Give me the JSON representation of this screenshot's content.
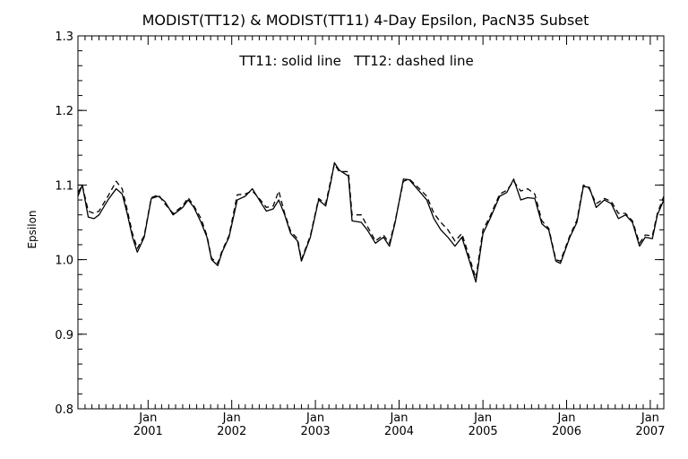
{
  "chart_data": {
    "type": "line",
    "title": "MODIST(TT12) & MODIST(TT11) 4-Day Epsilon, PacN35 Subset",
    "annotation": "TT11: solid line   TT12: dashed line",
    "xlabel": "",
    "ylabel": "Epsilon",
    "ylim": [
      0.8,
      1.3
    ],
    "xlim": [
      "2000-03-01",
      "2007-03-01"
    ],
    "yticks": [
      "0.8",
      "0.9",
      "1.0",
      "1.1",
      "1.2",
      "1.3"
    ],
    "xticks": [
      {
        "month": "Jan",
        "year": "2001",
        "date": "2001-01-01"
      },
      {
        "month": "Jan",
        "year": "2002",
        "date": "2002-01-01"
      },
      {
        "month": "Jan",
        "year": "2003",
        "date": "2003-01-01"
      },
      {
        "month": "Jan",
        "year": "2004",
        "date": "2004-01-01"
      },
      {
        "month": "Jan",
        "year": "2005",
        "date": "2005-01-01"
      },
      {
        "month": "Jan",
        "year": "2006",
        "date": "2006-01-01"
      },
      {
        "month": "Jan",
        "year": "2007",
        "date": "2007-01-01"
      }
    ],
    "grid": false,
    "series": [
      {
        "name": "TT11",
        "style": "solid",
        "color": "#000000",
        "points": [
          [
            "2000-03-01",
            1.085
          ],
          [
            "2000-03-20",
            1.1
          ],
          [
            "2000-04-15",
            1.057
          ],
          [
            "2000-05-10",
            1.055
          ],
          [
            "2000-06-01",
            1.06
          ],
          [
            "2000-07-10",
            1.08
          ],
          [
            "2000-08-15",
            1.095
          ],
          [
            "2000-09-10",
            1.088
          ],
          [
            "2000-10-01",
            1.063
          ],
          [
            "2000-10-25",
            1.03
          ],
          [
            "2000-11-15",
            1.01
          ],
          [
            "2000-12-15",
            1.03
          ],
          [
            "2001-01-15",
            1.082
          ],
          [
            "2001-02-15",
            1.085
          ],
          [
            "2001-03-15",
            1.078
          ],
          [
            "2001-04-20",
            1.06
          ],
          [
            "2001-06-01",
            1.07
          ],
          [
            "2001-06-25",
            1.08
          ],
          [
            "2001-07-20",
            1.07
          ],
          [
            "2001-08-20",
            1.05
          ],
          [
            "2001-09-15",
            1.03
          ],
          [
            "2001-10-05",
            1.0
          ],
          [
            "2001-11-01",
            0.992
          ],
          [
            "2001-11-20",
            1.01
          ],
          [
            "2001-12-20",
            1.03
          ],
          [
            "2002-01-25",
            1.08
          ],
          [
            "2002-03-01",
            1.085
          ],
          [
            "2002-04-01",
            1.095
          ],
          [
            "2002-05-01",
            1.08
          ],
          [
            "2002-06-01",
            1.065
          ],
          [
            "2002-07-01",
            1.068
          ],
          [
            "2002-07-25",
            1.08
          ],
          [
            "2002-08-20",
            1.06
          ],
          [
            "2002-09-15",
            1.035
          ],
          [
            "2002-10-15",
            1.025
          ],
          [
            "2002-11-01",
            0.998
          ],
          [
            "2002-12-10",
            1.03
          ],
          [
            "2003-01-15",
            1.08
          ],
          [
            "2003-02-15",
            1.072
          ],
          [
            "2003-03-10",
            1.105
          ],
          [
            "2003-03-25",
            1.13
          ],
          [
            "2003-04-15",
            1.12
          ],
          [
            "2003-05-25",
            1.112
          ],
          [
            "2003-06-10",
            1.052
          ],
          [
            "2003-07-20",
            1.05
          ],
          [
            "2003-08-15",
            1.04
          ],
          [
            "2003-09-20",
            1.022
          ],
          [
            "2003-10-25",
            1.03
          ],
          [
            "2003-11-20",
            1.018
          ],
          [
            "2003-12-15",
            1.05
          ],
          [
            "2004-01-20",
            1.108
          ],
          [
            "2004-02-15",
            1.107
          ],
          [
            "2004-03-20",
            1.095
          ],
          [
            "2004-05-01",
            1.08
          ],
          [
            "2004-06-01",
            1.055
          ],
          [
            "2004-07-01",
            1.04
          ],
          [
            "2004-08-01",
            1.03
          ],
          [
            "2004-09-01",
            1.018
          ],
          [
            "2004-10-01",
            1.03
          ],
          [
            "2004-11-01",
            1.0
          ],
          [
            "2004-12-01",
            0.97
          ],
          [
            "2005-01-01",
            1.035
          ],
          [
            "2005-02-01",
            1.055
          ],
          [
            "2005-03-15",
            1.085
          ],
          [
            "2005-04-15",
            1.09
          ],
          [
            "2005-05-15",
            1.108
          ],
          [
            "2005-06-15",
            1.08
          ],
          [
            "2005-07-15",
            1.083
          ],
          [
            "2005-08-15",
            1.082
          ],
          [
            "2005-09-15",
            1.048
          ],
          [
            "2005-10-15",
            1.04
          ],
          [
            "2005-11-15",
            0.998
          ],
          [
            "2005-12-05",
            0.995
          ],
          [
            "2006-01-15",
            1.03
          ],
          [
            "2006-02-15",
            1.05
          ],
          [
            "2006-03-15",
            1.098
          ],
          [
            "2006-04-10",
            1.097
          ],
          [
            "2006-05-10",
            1.07
          ],
          [
            "2006-06-15",
            1.08
          ],
          [
            "2006-07-15",
            1.075
          ],
          [
            "2006-08-15",
            1.055
          ],
          [
            "2006-09-15",
            1.06
          ],
          [
            "2006-10-15",
            1.05
          ],
          [
            "2006-11-15",
            1.018
          ],
          [
            "2006-12-10",
            1.03
          ],
          [
            "2007-01-10",
            1.028
          ],
          [
            "2007-02-01",
            1.06
          ],
          [
            "2007-03-01",
            1.08
          ]
        ]
      },
      {
        "name": "TT12",
        "style": "dashed",
        "color": "#000000",
        "points": [
          [
            "2000-03-01",
            1.09
          ],
          [
            "2000-03-20",
            1.1
          ],
          [
            "2000-04-15",
            1.065
          ],
          [
            "2000-05-10",
            1.062
          ],
          [
            "2000-06-01",
            1.065
          ],
          [
            "2000-07-10",
            1.085
          ],
          [
            "2000-08-15",
            1.105
          ],
          [
            "2000-09-10",
            1.095
          ],
          [
            "2000-10-01",
            1.068
          ],
          [
            "2000-10-25",
            1.035
          ],
          [
            "2000-11-15",
            1.015
          ],
          [
            "2000-12-15",
            1.032
          ],
          [
            "2001-01-15",
            1.083
          ],
          [
            "2001-02-15",
            1.087
          ],
          [
            "2001-03-15",
            1.075
          ],
          [
            "2001-04-20",
            1.062
          ],
          [
            "2001-06-01",
            1.072
          ],
          [
            "2001-06-25",
            1.083
          ],
          [
            "2001-07-20",
            1.072
          ],
          [
            "2001-08-20",
            1.055
          ],
          [
            "2001-09-15",
            1.032
          ],
          [
            "2001-10-05",
            1.002
          ],
          [
            "2001-11-01",
            0.995
          ],
          [
            "2001-11-20",
            1.012
          ],
          [
            "2001-12-20",
            1.032
          ],
          [
            "2002-01-25",
            1.087
          ],
          [
            "2002-03-01",
            1.088
          ],
          [
            "2002-04-01",
            1.092
          ],
          [
            "2002-05-01",
            1.082
          ],
          [
            "2002-06-01",
            1.07
          ],
          [
            "2002-07-01",
            1.072
          ],
          [
            "2002-07-25",
            1.092
          ],
          [
            "2002-08-20",
            1.062
          ],
          [
            "2002-09-15",
            1.038
          ],
          [
            "2002-10-15",
            1.028
          ],
          [
            "2002-11-01",
            1.0
          ],
          [
            "2002-12-10",
            1.032
          ],
          [
            "2003-01-15",
            1.082
          ],
          [
            "2003-02-15",
            1.075
          ],
          [
            "2003-03-10",
            1.108
          ],
          [
            "2003-03-25",
            1.128
          ],
          [
            "2003-04-15",
            1.118
          ],
          [
            "2003-05-25",
            1.118
          ],
          [
            "2003-06-10",
            1.06
          ],
          [
            "2003-07-20",
            1.06
          ],
          [
            "2003-08-15",
            1.045
          ],
          [
            "2003-09-20",
            1.025
          ],
          [
            "2003-10-25",
            1.033
          ],
          [
            "2003-11-20",
            1.022
          ],
          [
            "2003-12-15",
            1.052
          ],
          [
            "2004-01-20",
            1.105
          ],
          [
            "2004-02-15",
            1.108
          ],
          [
            "2004-03-20",
            1.098
          ],
          [
            "2004-05-01",
            1.085
          ],
          [
            "2004-06-01",
            1.062
          ],
          [
            "2004-07-01",
            1.05
          ],
          [
            "2004-08-01",
            1.04
          ],
          [
            "2004-09-01",
            1.025
          ],
          [
            "2004-10-01",
            1.035
          ],
          [
            "2004-11-01",
            1.005
          ],
          [
            "2004-12-01",
            0.975
          ],
          [
            "2005-01-01",
            1.04
          ],
          [
            "2005-02-01",
            1.058
          ],
          [
            "2005-03-15",
            1.088
          ],
          [
            "2005-04-15",
            1.093
          ],
          [
            "2005-05-15",
            1.105
          ],
          [
            "2005-06-15",
            1.092
          ],
          [
            "2005-07-15",
            1.095
          ],
          [
            "2005-08-15",
            1.088
          ],
          [
            "2005-09-15",
            1.052
          ],
          [
            "2005-10-15",
            1.042
          ],
          [
            "2005-11-15",
            1.0
          ],
          [
            "2005-12-05",
            0.998
          ],
          [
            "2006-01-15",
            1.032
          ],
          [
            "2006-02-15",
            1.053
          ],
          [
            "2006-03-15",
            1.1
          ],
          [
            "2006-04-10",
            1.095
          ],
          [
            "2006-05-10",
            1.075
          ],
          [
            "2006-06-15",
            1.082
          ],
          [
            "2006-07-15",
            1.078
          ],
          [
            "2006-08-15",
            1.062
          ],
          [
            "2006-09-15",
            1.062
          ],
          [
            "2006-10-15",
            1.052
          ],
          [
            "2006-11-15",
            1.022
          ],
          [
            "2006-12-10",
            1.033
          ],
          [
            "2007-01-10",
            1.032
          ],
          [
            "2007-02-01",
            1.062
          ],
          [
            "2007-03-01",
            1.085
          ]
        ]
      }
    ]
  }
}
